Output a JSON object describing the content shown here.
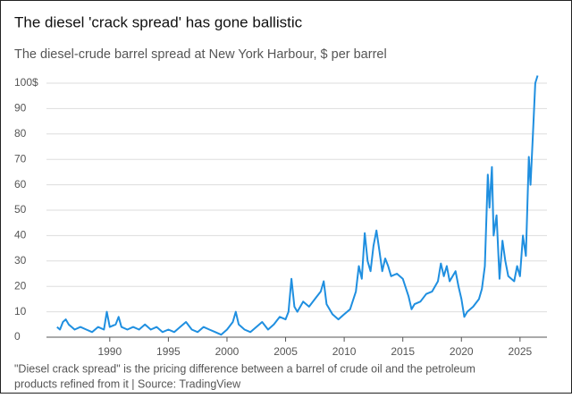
{
  "chart_data": {
    "type": "line",
    "title": "The diesel 'crack spread' has gone ballistic",
    "subtitle": "The diesel-crude barrel spread at New York Harbour, $ per barrel",
    "note": [
      "\"Diesel crack spread\" is the pricing difference between a barrel of crude oil and the petroleum",
      "products refined from it | Source: TradingView"
    ],
    "xlim": [
      1984.6,
      2027.3
    ],
    "xticks": [
      1990,
      1995,
      2000,
      2005,
      2010,
      2015,
      2020,
      2025
    ],
    "ylim": [
      0,
      103
    ],
    "yticks": [
      0,
      10,
      20,
      30,
      40,
      50,
      60,
      70,
      80,
      90,
      {
        "value": 100,
        "label": "100$"
      }
    ],
    "grid": true,
    "x": [
      1985.5,
      1985.75,
      1986,
      1986.25,
      1986.5,
      1986.75,
      1987,
      1987.5,
      1988,
      1988.5,
      1989,
      1989.5,
      1989.75,
      1990,
      1990.5,
      1990.75,
      1991,
      1991.5,
      1992,
      1992.5,
      1993,
      1993.5,
      1994,
      1994.5,
      1995,
      1995.5,
      1996,
      1996.5,
      1997,
      1997.5,
      1998,
      1998.5,
      1999,
      1999.5,
      2000,
      2000.5,
      2000.75,
      2001,
      2001.5,
      2002,
      2002.5,
      2003,
      2003.5,
      2004,
      2004.5,
      2005,
      2005.25,
      2005.5,
      2005.75,
      2006,
      2006.5,
      2007,
      2007.5,
      2008,
      2008.25,
      2008.5,
      2009,
      2009.5,
      2010,
      2010.5,
      2011,
      2011.25,
      2011.5,
      2011.75,
      2012,
      2012.25,
      2012.5,
      2012.75,
      2013,
      2013.25,
      2013.5,
      2013.75,
      2014,
      2014.5,
      2015,
      2015.5,
      2015.75,
      2016,
      2016.5,
      2017,
      2017.5,
      2018,
      2018.25,
      2018.5,
      2018.75,
      2019,
      2019.5,
      2019.75,
      2020,
      2020.25,
      2020.5,
      2021,
      2021.5,
      2021.75,
      2022,
      2022.25,
      2022.4,
      2022.6,
      2022.75,
      2023,
      2023.25,
      2023.5,
      2023.75,
      2024,
      2024.5,
      2024.75,
      2025,
      2025.25,
      2025.5,
      2025.75,
      2025.9,
      2026.1,
      2026.3,
      2026.5
    ],
    "series": [
      {
        "color": "#1f8fe0",
        "values": [
          4,
          3,
          6,
          7,
          5,
          4,
          3,
          4,
          3,
          2,
          4,
          3,
          10,
          4,
          5,
          8,
          4,
          3,
          4,
          3,
          5,
          3,
          4,
          2,
          3,
          2,
          4,
          6,
          3,
          2,
          4,
          3,
          2,
          1,
          3,
          6,
          10,
          5,
          3,
          2,
          4,
          6,
          3,
          5,
          8,
          7,
          10,
          23,
          12,
          10,
          14,
          12,
          15,
          18,
          22,
          13,
          9,
          7,
          9,
          11,
          18,
          28,
          23,
          41,
          30,
          26,
          36,
          42,
          34,
          26,
          31,
          28,
          24,
          25,
          23,
          16,
          11,
          13,
          14,
          17,
          18,
          22,
          29,
          24,
          28,
          22,
          26,
          20,
          15,
          8,
          10,
          12,
          15,
          19,
          28,
          64,
          51,
          67,
          40,
          48,
          23,
          38,
          30,
          24,
          22,
          28,
          24,
          40,
          32,
          71,
          60,
          80,
          100,
          103
        ]
      }
    ]
  }
}
